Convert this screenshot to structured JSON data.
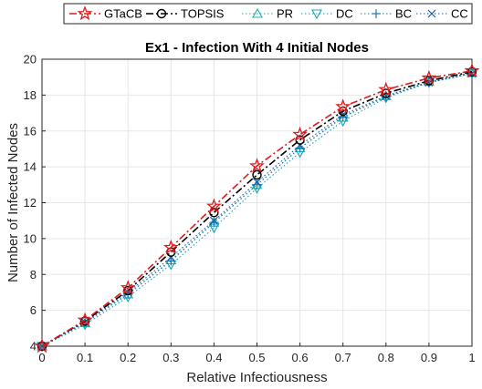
{
  "chart_data": {
    "type": "line",
    "title": "Ex1 - Infection With 4 Initial Nodes",
    "xlabel": "Relative Infectiousness",
    "ylabel": "Number of Infected Nodes",
    "xlim": [
      0,
      1
    ],
    "ylim": [
      4,
      20
    ],
    "xticks": [
      0,
      0.1,
      0.2,
      0.3,
      0.4,
      0.5,
      0.6,
      0.7,
      0.8,
      0.9,
      1
    ],
    "yticks": [
      4,
      6,
      8,
      10,
      12,
      14,
      16,
      18,
      20
    ],
    "grid": true,
    "legend_position": "top, horizontal",
    "x": [
      0,
      0.1,
      0.2,
      0.3,
      0.4,
      0.5,
      0.6,
      0.7,
      0.8,
      0.9,
      1
    ],
    "series": [
      {
        "name": "GTaCB",
        "color": "#e31a1c",
        "dash": "dash-dot",
        "marker": "star",
        "values": [
          4.0,
          5.45,
          7.25,
          9.5,
          11.8,
          14.05,
          15.8,
          17.35,
          18.3,
          18.95,
          19.35
        ]
      },
      {
        "name": "TOPSIS",
        "color": "#000000",
        "dash": "dash-dot",
        "marker": "circle",
        "values": [
          4.0,
          5.4,
          7.1,
          9.25,
          11.45,
          13.55,
          15.5,
          17.1,
          18.1,
          18.8,
          19.3
        ]
      },
      {
        "name": "PR",
        "color": "#1fb5a4",
        "dash": "dotted",
        "marker": "triangle-up",
        "values": [
          4.0,
          5.3,
          6.9,
          8.8,
          10.9,
          13.0,
          15.05,
          16.75,
          17.95,
          18.75,
          19.25
        ]
      },
      {
        "name": "DC",
        "color": "#17a2b8",
        "dash": "dotted",
        "marker": "triangle-down",
        "values": [
          4.0,
          5.2,
          6.75,
          8.55,
          10.6,
          12.8,
          14.8,
          16.55,
          17.85,
          18.7,
          19.2
        ]
      },
      {
        "name": "BC",
        "color": "#1f77b4",
        "dash": "dotted",
        "marker": "plus",
        "values": [
          4.0,
          5.3,
          6.9,
          8.75,
          10.9,
          13.0,
          15.05,
          16.8,
          17.9,
          18.75,
          19.25
        ]
      },
      {
        "name": "CC",
        "color": "#1f5fa8",
        "dash": "dotted",
        "marker": "x",
        "values": [
          4.0,
          5.35,
          7.0,
          8.95,
          11.0,
          13.15,
          15.2,
          16.9,
          17.95,
          18.7,
          19.2
        ]
      }
    ]
  }
}
